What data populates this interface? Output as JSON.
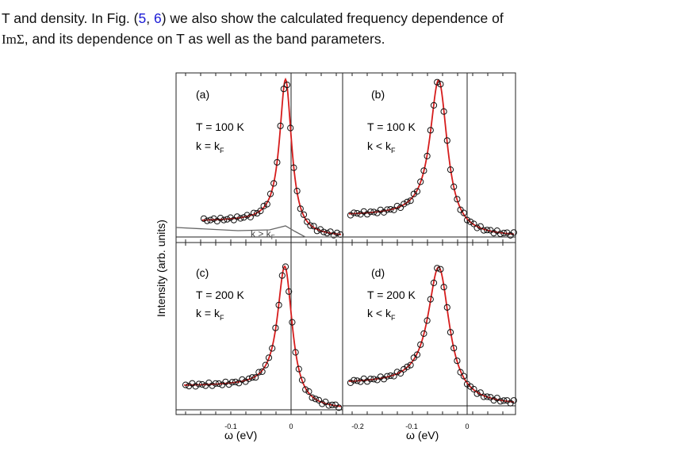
{
  "paragraph": {
    "line1_start": "T and density. In Fig. (",
    "ref_a": "5",
    "sep": ", ",
    "ref_b": "6",
    "line1_end": ") we also show the calculated frequency dependence of",
    "line2_math": "ImΣ",
    "line2_end": ", and its dependence on T as well as the band parameters."
  },
  "figure": {
    "ylabel": "Intensity (arb. units)",
    "xlabel": "ω (eV)",
    "panels": [
      {
        "id": "panel-a",
        "letter": "(a)",
        "temp": "T = 100 K",
        "k_main": "k = k",
        "k_sub": "F",
        "annotation": "k > k",
        "annotation_sub": "F"
      },
      {
        "id": "panel-b",
        "letter": "(b)",
        "temp": "T = 100 K",
        "k_main": "k < k",
        "k_sub": "F"
      },
      {
        "id": "panel-c",
        "letter": "(c)",
        "temp": "T = 200 K",
        "k_main": "k = k",
        "k_sub": "F"
      },
      {
        "id": "panel-d",
        "letter": "(d)",
        "temp": "T = 200 K",
        "k_main": "k < k",
        "k_sub": "F"
      }
    ],
    "x_ticks_left": [
      "-0.1",
      "0"
    ],
    "x_ticks_right": [
      "-0.2",
      "-0.1",
      "0"
    ]
  },
  "chart_data": [
    {
      "type": "scatter",
      "title": "",
      "panel": "(a)",
      "xlabel": "",
      "ylabel": "Intensity (arb. units)",
      "xlim": [
        -0.18,
        0.08
      ],
      "peak_position_eV": -0.01,
      "series": [
        {
          "name": "",
          "kind": "data (circles)"
        },
        {
          "name": "",
          "kind": "fit (red line)"
        },
        {
          "name": "k > kF",
          "kind": "background (gray line)"
        }
      ]
    },
    {
      "type": "scatter",
      "title": "",
      "panel": "(b)",
      "xlabel": "",
      "xlim": [
        -0.25,
        0.08
      ],
      "peak_position_eV": -0.05
    },
    {
      "type": "scatter",
      "title": "",
      "panel": "(c)",
      "xlabel": "ω (eV)",
      "xlim": [
        -0.18,
        0.08
      ],
      "peak_position_eV": -0.012
    },
    {
      "type": "scatter",
      "title": "",
      "panel": "(d)",
      "xlabel": "ω (eV)",
      "xlim": [
        -0.25,
        0.08
      ],
      "peak_position_eV": -0.05
    }
  ]
}
